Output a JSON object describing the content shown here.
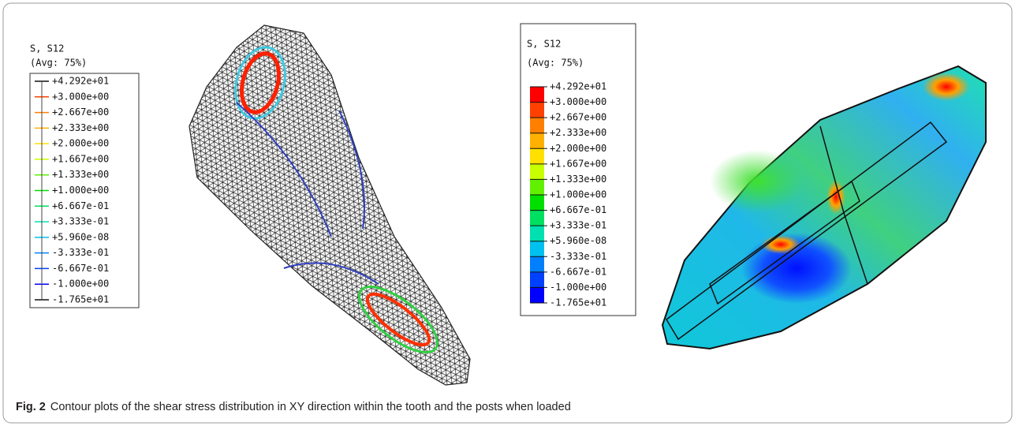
{
  "figure": {
    "legends": [
      {
        "title": "S, S12",
        "subtitle": "(Avg: 75%)",
        "labels": [
          "+4.292e+01",
          "+3.000e+00",
          "+2.667e+00",
          "+2.333e+00",
          "+2.000e+00",
          "+1.667e+00",
          "+1.333e+00",
          "+1.000e+00",
          "+6.667e-01",
          "+3.333e-01",
          "+5.960e-08",
          "-3.333e-01",
          "-6.667e-01",
          "-1.000e+00",
          "-1.765e+01"
        ]
      },
      {
        "title": "S, S12",
        "subtitle": "(Avg: 75%)",
        "labels": [
          "+4.292e+01",
          "+3.000e+00",
          "+2.667e+00",
          "+2.333e+00",
          "+2.000e+00",
          "+1.667e+00",
          "+1.333e+00",
          "+1.000e+00",
          "+6.667e-01",
          "+3.333e-01",
          "+5.960e-08",
          "-3.333e-01",
          "-6.667e-01",
          "-1.000e+00",
          "-1.765e+01"
        ]
      }
    ],
    "caption": {
      "label": "Fig. 2",
      "text": "Contour plots of the shear stress distribution in XY direction within the tooth and the posts when loaded"
    }
  }
}
